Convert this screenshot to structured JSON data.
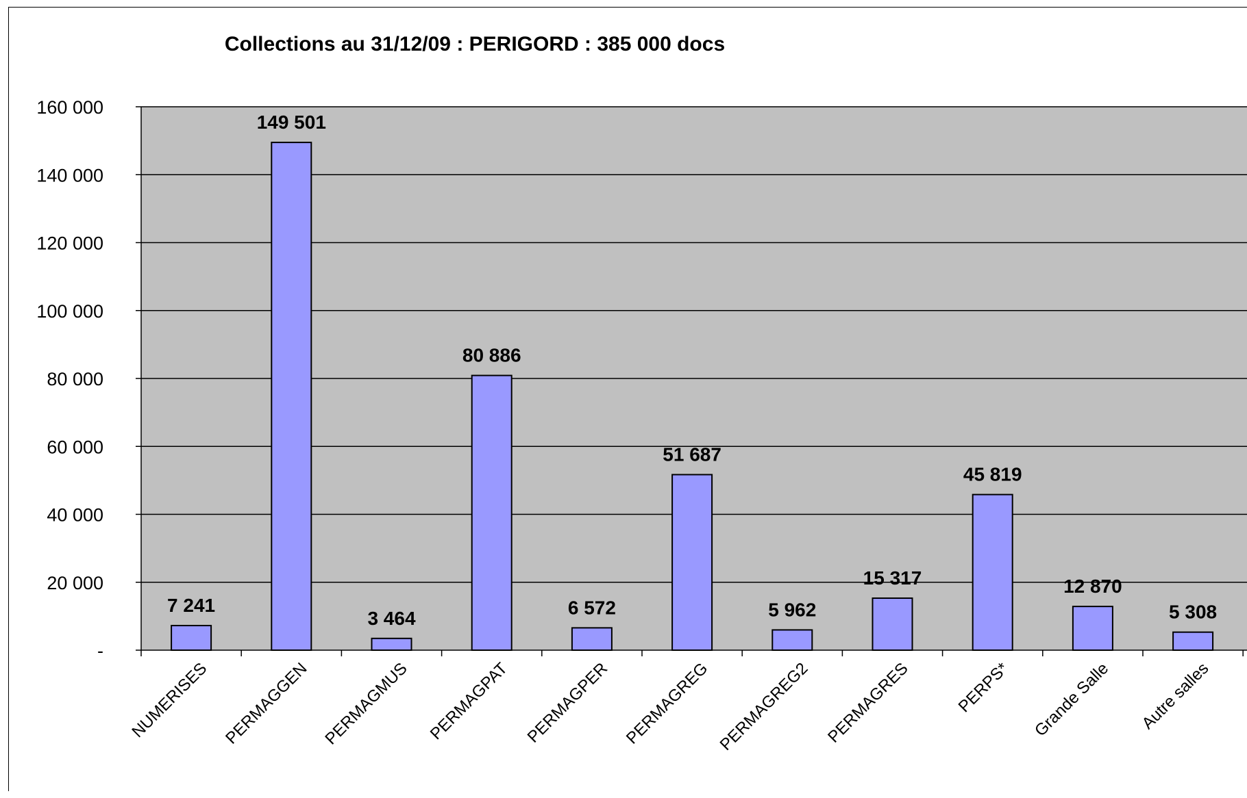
{
  "chart_data": {
    "type": "bar",
    "title": "Collections au 31/12/09 : PERIGORD : 385 000 docs",
    "xlabel": "",
    "ylabel": "",
    "categories": [
      "NUMERISES",
      "PERMAGGEN",
      "PERMAGMUS",
      "PERMAGPAT",
      "PERMAGPER",
      "PERMAGREG",
      "PERMAGREG2",
      "PERMAGRES",
      "PERPS*",
      "Grande Salle",
      "Autre salles"
    ],
    "values": [
      7241,
      149501,
      3464,
      80886,
      6572,
      51687,
      5962,
      15317,
      45819,
      12870,
      5308
    ],
    "value_labels": [
      "7 241",
      "149 501",
      "3 464",
      "80 886",
      "6 572",
      "51 687",
      "5 962",
      "15 317",
      "45 819",
      "12 870",
      "5 308"
    ],
    "ylim": [
      0,
      160000
    ],
    "yticks": [
      0,
      20000,
      40000,
      60000,
      80000,
      100000,
      120000,
      140000,
      160000
    ],
    "ytick_labels": [
      "-",
      "20 000",
      "40 000",
      "60 000",
      "80 000",
      "100 000",
      "120 000",
      "140 000",
      "160 000"
    ],
    "grid": true,
    "legend": "none",
    "colors": {
      "bar_fill": "#9999ff",
      "bar_stroke": "#000000",
      "plot_background": "#c0c0c0",
      "gridline": "#000000",
      "page_background": "#ffffff"
    }
  }
}
